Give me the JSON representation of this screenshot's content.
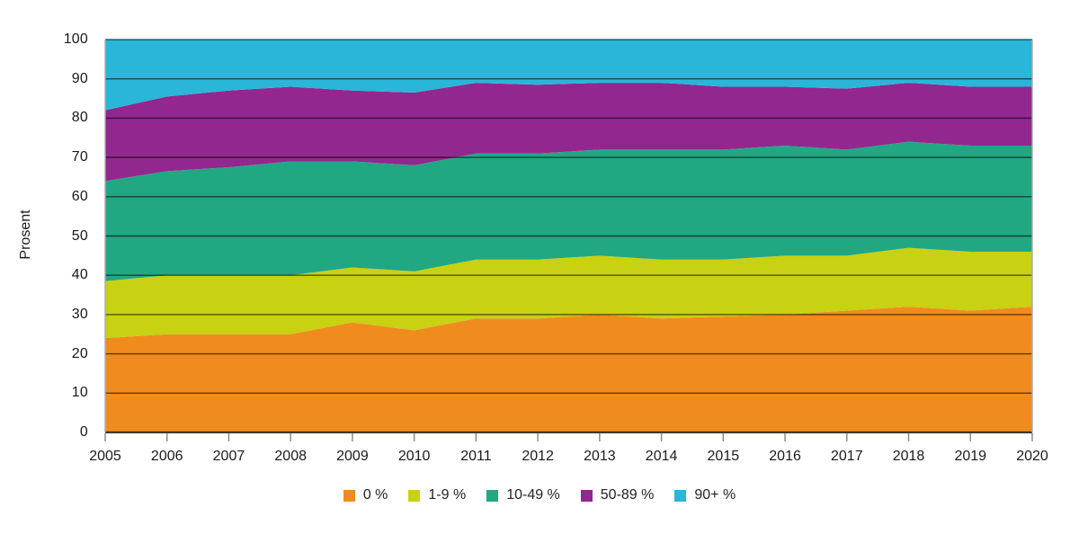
{
  "chart_data": {
    "type": "area",
    "stacked": true,
    "normalized_to_100": true,
    "title": "",
    "xlabel": "",
    "ylabel": "Prosent",
    "ylim": [
      0,
      100
    ],
    "yticks": [
      0,
      10,
      20,
      30,
      40,
      50,
      60,
      70,
      80,
      90,
      100
    ],
    "grid": "horizontal",
    "legend_position": "bottom-center",
    "x": [
      2005,
      2006,
      2007,
      2008,
      2009,
      2010,
      2011,
      2012,
      2013,
      2014,
      2015,
      2016,
      2017,
      2018,
      2019,
      2020
    ],
    "series": [
      {
        "name": "0 %",
        "color": "#F08C1E",
        "values": [
          24,
          25,
          25,
          25,
          28,
          26,
          29,
          29,
          30,
          29,
          29.5,
          30,
          31,
          32,
          31,
          32
        ]
      },
      {
        "name": "1-9 %",
        "color": "#C8D112",
        "values": [
          14.5,
          15,
          15,
          15,
          14,
          15,
          15,
          15,
          15,
          15,
          14.5,
          15,
          14,
          15,
          15,
          14
        ]
      },
      {
        "name": "10-49 %",
        "color": "#21A883",
        "values": [
          25.5,
          26.5,
          27.5,
          29,
          27,
          27,
          27,
          27,
          27,
          28,
          28,
          28,
          27,
          27,
          27,
          27
        ]
      },
      {
        "name": "50-89 %",
        "color": "#92278F",
        "values": [
          18,
          19,
          19.5,
          19,
          18,
          18.5,
          18,
          17.5,
          17,
          17,
          16,
          15,
          15.5,
          15,
          15,
          15
        ]
      },
      {
        "name": "90+ %",
        "color": "#29B6D8",
        "values": [
          18,
          14.5,
          13,
          12,
          13,
          13.5,
          11,
          11.5,
          11,
          11,
          12,
          12,
          12.5,
          11,
          12,
          12
        ]
      }
    ],
    "cumulative_tops": {
      "0 %": [
        24,
        25,
        25,
        25,
        28,
        26,
        29,
        29,
        30,
        29,
        29.5,
        30,
        31,
        32,
        31,
        32
      ],
      "1-9 %": [
        38.5,
        40,
        40,
        40,
        42,
        41,
        44,
        44,
        45,
        44,
        44,
        45,
        45,
        47,
        46,
        46
      ],
      "10-49 %": [
        64,
        66.5,
        67.5,
        69,
        69,
        68,
        71,
        71,
        72,
        72,
        72,
        73,
        72,
        74,
        73,
        73
      ],
      "50-89 %": [
        82,
        85.5,
        87,
        88,
        87,
        86.5,
        89,
        88.5,
        89,
        89,
        88,
        88,
        87.5,
        89,
        88,
        88
      ],
      "90+ %": [
        100,
        100,
        100,
        100,
        100,
        100,
        100,
        100,
        100,
        100,
        100,
        100,
        100,
        100,
        100,
        100
      ]
    },
    "colors": {
      "gridline": "rgba(0,0,0,0.60)",
      "baseline": "rgba(0,0,0,0.72)",
      "plot_side_border": "#ABABAB",
      "tick_mark": "#8C8C8C",
      "text": "#1A1A1A",
      "background": "#FFFFFF"
    }
  }
}
